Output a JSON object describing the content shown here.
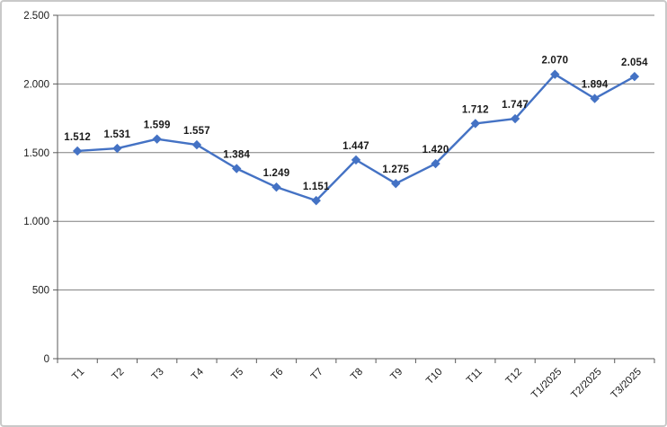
{
  "chart_data": {
    "type": "line",
    "title": "",
    "xlabel": "",
    "ylabel": "",
    "legend": "none",
    "grid": "horizontal",
    "categories": [
      "T1",
      "T2",
      "T3",
      "T4",
      "T5",
      "T6",
      "T7",
      "T8",
      "T9",
      "T10",
      "T11",
      "T12",
      "T1/2025",
      "T2/2025",
      "T3/2025"
    ],
    "values": [
      1512,
      1531,
      1599,
      1557,
      1384,
      1249,
      1151,
      1447,
      1275,
      1420,
      1712,
      1747,
      2070,
      1894,
      2054
    ],
    "point_labels": [
      "1.512",
      "1.531",
      "1.599",
      "1.557",
      "1.384",
      "1.249",
      "1.151",
      "1.447",
      "1.275",
      "1.420",
      "1.712",
      "1.747",
      "2.070",
      "1.894",
      "2.054"
    ],
    "highlight_index": 14,
    "y_ticks": [
      "0",
      "500",
      "1.000",
      "1.500",
      "2.000",
      "2.500"
    ],
    "y_tick_values": [
      0,
      500,
      1000,
      1500,
      2000,
      2500
    ],
    "ylim": [
      0,
      2500
    ],
    "x_tick_rotation": -45,
    "marker": "diamond",
    "colors": {
      "line": "#4472c4",
      "marker": "#4472c4",
      "point_label": "#1a1a1a",
      "highlight_label": "#e02020",
      "gridline": "#7f7f7f",
      "axis": "#595959",
      "frame_border": "#c9c9c9",
      "background": "#ffffff"
    }
  }
}
